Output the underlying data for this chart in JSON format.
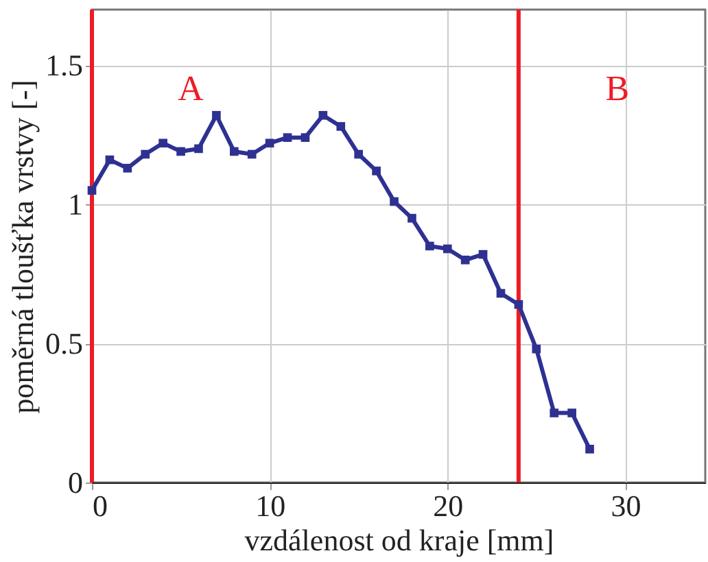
{
  "chart_data": {
    "type": "line",
    "xlabel": "vzdálenost od kraje [mm]",
    "ylabel": "poměrná tloušťka vrstvy [-]",
    "x": [
      0,
      1,
      2,
      3,
      4,
      5,
      6,
      7,
      8,
      9,
      10,
      11,
      12,
      13,
      14,
      15,
      16,
      17,
      18,
      19,
      20,
      21,
      22,
      23,
      24,
      25,
      26,
      27,
      28
    ],
    "series": [
      {
        "color": "#2e3192",
        "values": [
          1.05,
          1.16,
          1.13,
          1.18,
          1.22,
          1.19,
          1.2,
          1.32,
          1.19,
          1.18,
          1.22,
          1.24,
          1.24,
          1.32,
          1.28,
          1.18,
          1.12,
          1.01,
          0.95,
          0.85,
          0.84,
          0.8,
          0.82,
          0.68,
          0.64,
          0.48,
          0.25,
          0.25,
          0.12
        ]
      }
    ],
    "xlim": [
      0,
      34.5
    ],
    "ylim": [
      0,
      1.7
    ],
    "xticks": [
      0,
      10,
      20,
      30
    ],
    "yticks": [
      0,
      0.5,
      1,
      1.5
    ],
    "ref_lines": [
      {
        "axis": "x",
        "value": 0,
        "color": "#ee1c25"
      },
      {
        "axis": "x",
        "value": 24,
        "color": "#ee1c25"
      }
    ],
    "annotations": [
      "A",
      "B"
    ],
    "grid": true,
    "marker": "square",
    "line_style": "solid"
  }
}
